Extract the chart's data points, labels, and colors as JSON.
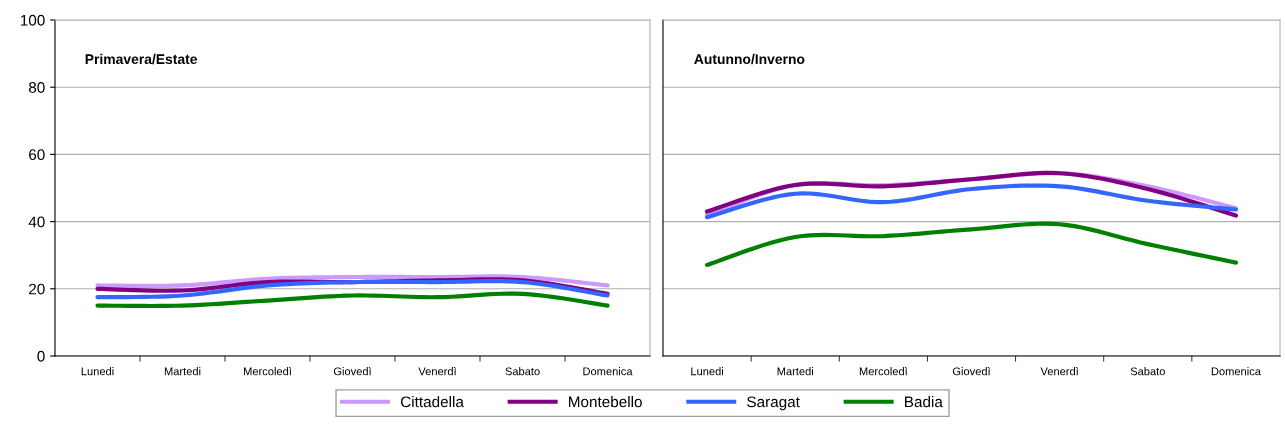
{
  "chart_data": [
    {
      "type": "line",
      "title": "Primavera/Estate",
      "categories": [
        "Lunedi",
        "Martedi",
        "Mercoledì",
        "Giovedì",
        "Venerdì",
        "Sabato",
        "Domenica"
      ],
      "ylim": [
        0,
        100
      ],
      "yticks": [
        0,
        20,
        40,
        60,
        80,
        100
      ],
      "grid": "y",
      "legend": "bottom",
      "marker": "none",
      "line_style": "solid",
      "series": [
        {
          "name": "Cittadella",
          "color": "#cc99ff",
          "values": [
            21,
            21,
            23,
            23.5,
            23.5,
            23.5,
            21
          ]
        },
        {
          "name": "Montebello",
          "color": "#800080",
          "values": [
            20,
            19.5,
            22,
            22,
            22.5,
            22.5,
            18.5
          ]
        },
        {
          "name": "Saragat",
          "color": "#3366ff",
          "values": [
            17.5,
            18,
            21,
            22,
            22,
            22,
            18
          ]
        },
        {
          "name": "Badia",
          "color": "#008000",
          "values": [
            15,
            15,
            16.5,
            18,
            17.5,
            18.5,
            15
          ]
        }
      ]
    },
    {
      "type": "line",
      "title": "Autunno/Inverno",
      "categories": [
        "Lunedi",
        "Martedi",
        "Mercoledì",
        "Giovedì",
        "Venerdì",
        "Sabato",
        "Domenica"
      ],
      "ylim": [
        0,
        100
      ],
      "yticks": [
        0,
        20,
        40,
        60,
        80,
        100
      ],
      "grid": "y",
      "tick_labels": "x",
      "marker": "none",
      "line_style": "solid",
      "series": [
        {
          "color": "#cc99ff",
          "values": [
            42,
            50.9,
            50.8,
            52.6,
            54.4,
            50.5,
            44
          ]
        },
        {
          "color": "#800080",
          "values": [
            43,
            50.9,
            50.5,
            52.6,
            54.4,
            49.7,
            41.8
          ]
        },
        {
          "color": "#3366ff",
          "values": [
            41.3,
            48.3,
            45.8,
            49.7,
            50.5,
            46.2,
            43.6
          ]
        },
        {
          "color": "#008000",
          "values": [
            27.1,
            35.4,
            35.7,
            37.7,
            39.2,
            33.3,
            27.8
          ]
        }
      ]
    }
  ]
}
